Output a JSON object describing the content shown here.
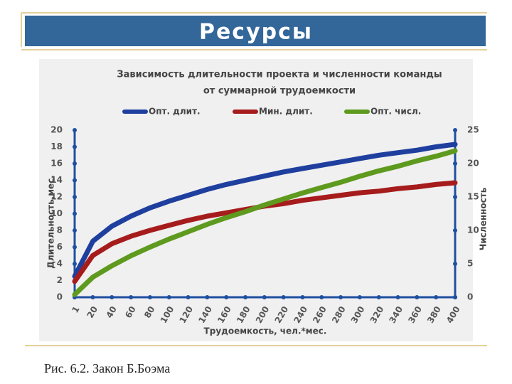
{
  "slide_title": "Ресурсы",
  "caption": "Рис. 6.2. Закон Б.Боэма",
  "chart_data": {
    "type": "line",
    "title": [
      "Зависимость длительности проекта и численности команды",
      "от суммарной трудоемкости"
    ],
    "x_label": "Трудоемкость, чел.*мес.",
    "y_label": "Длительность,мес.",
    "y2_label": "Численность",
    "x": [
      1,
      20,
      40,
      60,
      80,
      100,
      120,
      140,
      160,
      180,
      200,
      220,
      240,
      260,
      280,
      300,
      320,
      340,
      360,
      380,
      400
    ],
    "xlim": [
      1,
      400
    ],
    "xticks": [
      1,
      20,
      40,
      60,
      80,
      100,
      120,
      140,
      160,
      180,
      200,
      220,
      240,
      260,
      280,
      300,
      320,
      340,
      360,
      380,
      400
    ],
    "ylim": [
      0,
      20
    ],
    "yticks": [
      0,
      2,
      4,
      6,
      8,
      10,
      12,
      14,
      16,
      18,
      20
    ],
    "y2lim": [
      0,
      25
    ],
    "y2ticks": [
      0,
      5,
      10,
      15,
      20,
      25
    ],
    "series": [
      {
        "name": "Опт. длит.",
        "color": "#1f3f9f",
        "values": [
          2.5,
          6.7,
          8.5,
          9.7,
          10.7,
          11.5,
          12.2,
          12.9,
          13.5,
          14.0,
          14.5,
          15.0,
          15.4,
          15.8,
          16.2,
          16.6,
          17.0,
          17.3,
          17.6,
          18.0,
          18.3
        ]
      },
      {
        "name": "Мин. длит.",
        "color": "#a61c1c",
        "values": [
          1.9,
          5.0,
          6.4,
          7.3,
          8.0,
          8.6,
          9.2,
          9.7,
          10.1,
          10.5,
          10.9,
          11.2,
          11.6,
          11.9,
          12.2,
          12.5,
          12.7,
          13.0,
          13.2,
          13.5,
          13.7
        ]
      },
      {
        "name": "Опт. числ.",
        "color": "#5e9a1e",
        "axis": "y2",
        "values": [
          0.4,
          3.0,
          4.7,
          6.2,
          7.5,
          8.7,
          9.8,
          10.9,
          11.9,
          12.8,
          13.8,
          14.7,
          15.6,
          16.4,
          17.2,
          18.1,
          18.9,
          19.6,
          20.4,
          21.1,
          21.9
        ]
      }
    ]
  }
}
